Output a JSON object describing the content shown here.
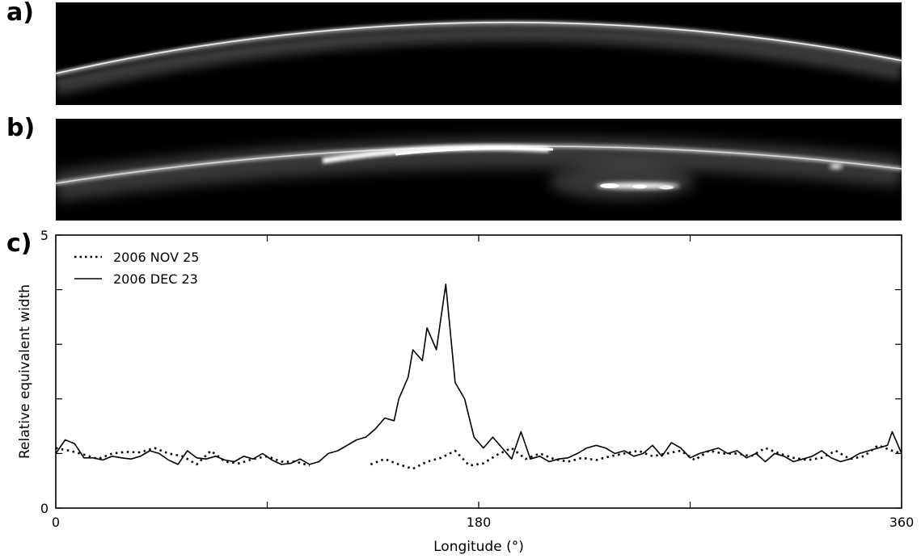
{
  "panels": {
    "a": {
      "label": "a)"
    },
    "b": {
      "label": "b)"
    },
    "c": {
      "label": "c)"
    }
  },
  "chart_data": {
    "type": "line",
    "xlabel": "Longitude (°)",
    "ylabel": "Relative equivalent width",
    "xlim": [
      0,
      360
    ],
    "ylim": [
      0,
      5
    ],
    "x_ticks": [
      0,
      180,
      360
    ],
    "y_ticks": [
      0,
      5
    ],
    "grid": false,
    "legend_position": "top-left",
    "series": [
      {
        "name": "2006 NOV 25",
        "style": "dotted",
        "color": "#000000",
        "segments": [
          {
            "x": [
              0,
              6,
              12,
              18,
              24,
              30,
              36,
              42,
              48,
              54,
              60,
              66,
              72,
              78,
              84,
              90,
              96,
              102,
              108
            ],
            "y": [
              1.1,
              1.05,
              0.98,
              0.9,
              1.0,
              1.03,
              1.02,
              1.1,
              1.0,
              0.95,
              0.8,
              1.05,
              0.85,
              0.82,
              0.9,
              0.95,
              0.85,
              0.85,
              0.78
            ]
          },
          {
            "x": [
              134,
              140,
              146,
              152,
              158,
              164,
              170,
              176,
              182,
              188,
              194,
              200,
              206,
              212,
              218,
              224,
              230,
              236,
              242,
              248,
              254,
              260,
              266,
              272,
              278,
              284,
              290,
              296,
              302,
              308,
              314,
              320,
              326,
              332,
              338,
              344,
              350,
              356,
              360
            ],
            "y": [
              0.8,
              0.9,
              0.8,
              0.72,
              0.85,
              0.92,
              1.05,
              0.78,
              0.82,
              0.98,
              1.1,
              0.9,
              1.0,
              0.9,
              0.85,
              0.92,
              0.88,
              0.95,
              1.0,
              1.05,
              0.95,
              1.0,
              1.05,
              0.88,
              1.05,
              1.0,
              1.0,
              0.95,
              1.1,
              1.0,
              0.92,
              0.88,
              0.92,
              1.05,
              0.9,
              0.95,
              1.15,
              1.05,
              1.0
            ]
          }
        ]
      },
      {
        "name": "2006 DEC 23",
        "style": "solid",
        "color": "#000000",
        "segments": [
          {
            "x": [
              0,
              4,
              8,
              12,
              16,
              20,
              24,
              28,
              32,
              36,
              40,
              44,
              48,
              52,
              56,
              60,
              64,
              68,
              72,
              76,
              80,
              84,
              88,
              92,
              96,
              100,
              104,
              108,
              112,
              116,
              120,
              124,
              128,
              132,
              136,
              140,
              144,
              146,
              150,
              152,
              156,
              158,
              162,
              166,
              170,
              174,
              178,
              182,
              186,
              190,
              194,
              198,
              202,
              206,
              210,
              214,
              218,
              222,
              226,
              230,
              234,
              238,
              242,
              246,
              250,
              254,
              258,
              262,
              266,
              270,
              274,
              278,
              282,
              286,
              290,
              294,
              298,
              302,
              306,
              310,
              314,
              318,
              322,
              326,
              330,
              334,
              338,
              342,
              346,
              350,
              354,
              356,
              360
            ],
            "y": [
              1.0,
              1.25,
              1.18,
              0.92,
              0.92,
              0.88,
              0.95,
              0.92,
              0.9,
              0.95,
              1.05,
              1.0,
              0.88,
              0.8,
              1.05,
              0.92,
              0.9,
              0.95,
              0.88,
              0.85,
              0.95,
              0.9,
              1.0,
              0.88,
              0.8,
              0.82,
              0.9,
              0.8,
              0.85,
              1.0,
              1.05,
              1.15,
              1.25,
              1.3,
              1.45,
              1.65,
              1.6,
              2.0,
              2.4,
              2.9,
              2.7,
              3.3,
              2.9,
              4.1,
              2.3,
              2.0,
              1.3,
              1.1,
              1.3,
              1.1,
              0.9,
              1.4,
              0.9,
              0.95,
              0.85,
              0.9,
              0.92,
              1.0,
              1.1,
              1.15,
              1.1,
              1.0,
              1.05,
              0.95,
              1.0,
              1.15,
              0.95,
              1.2,
              1.1,
              0.92,
              1.0,
              1.05,
              1.1,
              1.0,
              1.05,
              0.92,
              1.0,
              0.85,
              1.0,
              0.95,
              0.85,
              0.9,
              0.95,
              1.05,
              0.92,
              0.85,
              0.9,
              1.0,
              1.05,
              1.1,
              1.15,
              1.4,
              1.0
            ]
          }
        ]
      }
    ]
  }
}
